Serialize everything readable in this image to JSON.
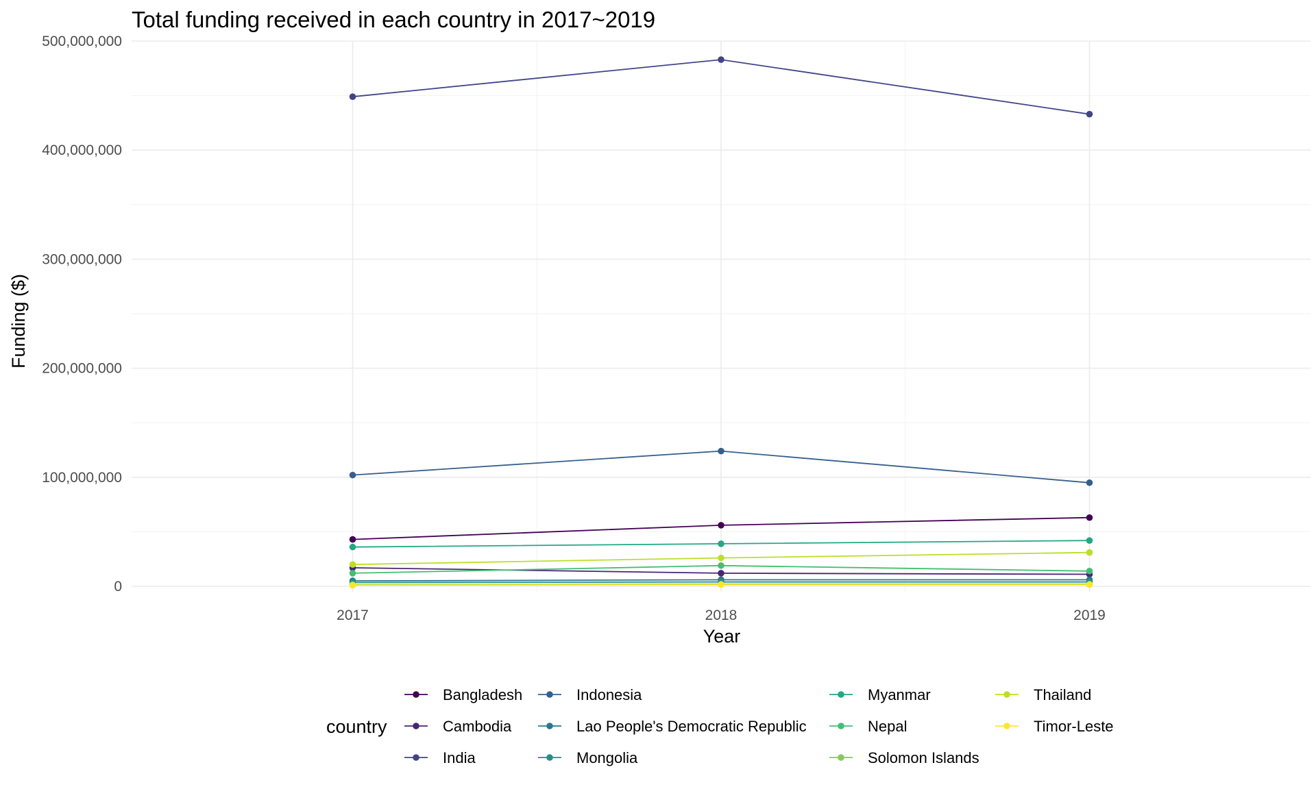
{
  "chart_data": {
    "type": "line",
    "title": "Total funding received in each country in 2017~2019",
    "xlabel": "Year",
    "ylabel": "Funding ($)",
    "x": [
      2017,
      2018,
      2019
    ],
    "x_tick_labels": [
      "2017",
      "2018",
      "2019"
    ],
    "xlim": [
      2016.4,
      2019.6
    ],
    "ylim": [
      -5000000,
      500000000
    ],
    "y_ticks": [
      0,
      100000000,
      200000000,
      300000000,
      400000000,
      500000000
    ],
    "y_tick_labels": [
      "0",
      "100,000,000",
      "200,000,000",
      "300,000,000",
      "400,000,000",
      "500,000,000"
    ],
    "grid": true,
    "legend": {
      "title": "country",
      "position": "bottom"
    },
    "series": [
      {
        "name": "Bangladesh",
        "color": "#440154",
        "values": [
          43000000,
          56000000,
          63000000
        ]
      },
      {
        "name": "Cambodia",
        "color": "#482576",
        "values": [
          17000000,
          12000000,
          11000000
        ]
      },
      {
        "name": "India",
        "color": "#414487",
        "values": [
          449000000,
          483000000,
          433000000
        ]
      },
      {
        "name": "Indonesia",
        "color": "#35608D",
        "values": [
          102000000,
          124000000,
          95000000
        ]
      },
      {
        "name": "Lao People's Democratic Republic",
        "color": "#2A788E",
        "values": [
          5000000,
          6000000,
          6000000
        ]
      },
      {
        "name": "Mongolia",
        "color": "#21908C",
        "values": [
          3500000,
          4000000,
          4000000
        ]
      },
      {
        "name": "Myanmar",
        "color": "#22A884",
        "values": [
          36000000,
          39000000,
          42000000
        ]
      },
      {
        "name": "Nepal",
        "color": "#43BF71",
        "values": [
          12000000,
          19000000,
          14000000
        ]
      },
      {
        "name": "Solomon Islands",
        "color": "#7AD151",
        "values": [
          1500000,
          2000000,
          2000000
        ]
      },
      {
        "name": "Thailand",
        "color": "#BBDF27",
        "values": [
          20000000,
          26000000,
          31000000
        ]
      },
      {
        "name": "Timor-Leste",
        "color": "#FDE725",
        "values": [
          1000000,
          1500000,
          1500000
        ]
      }
    ]
  }
}
